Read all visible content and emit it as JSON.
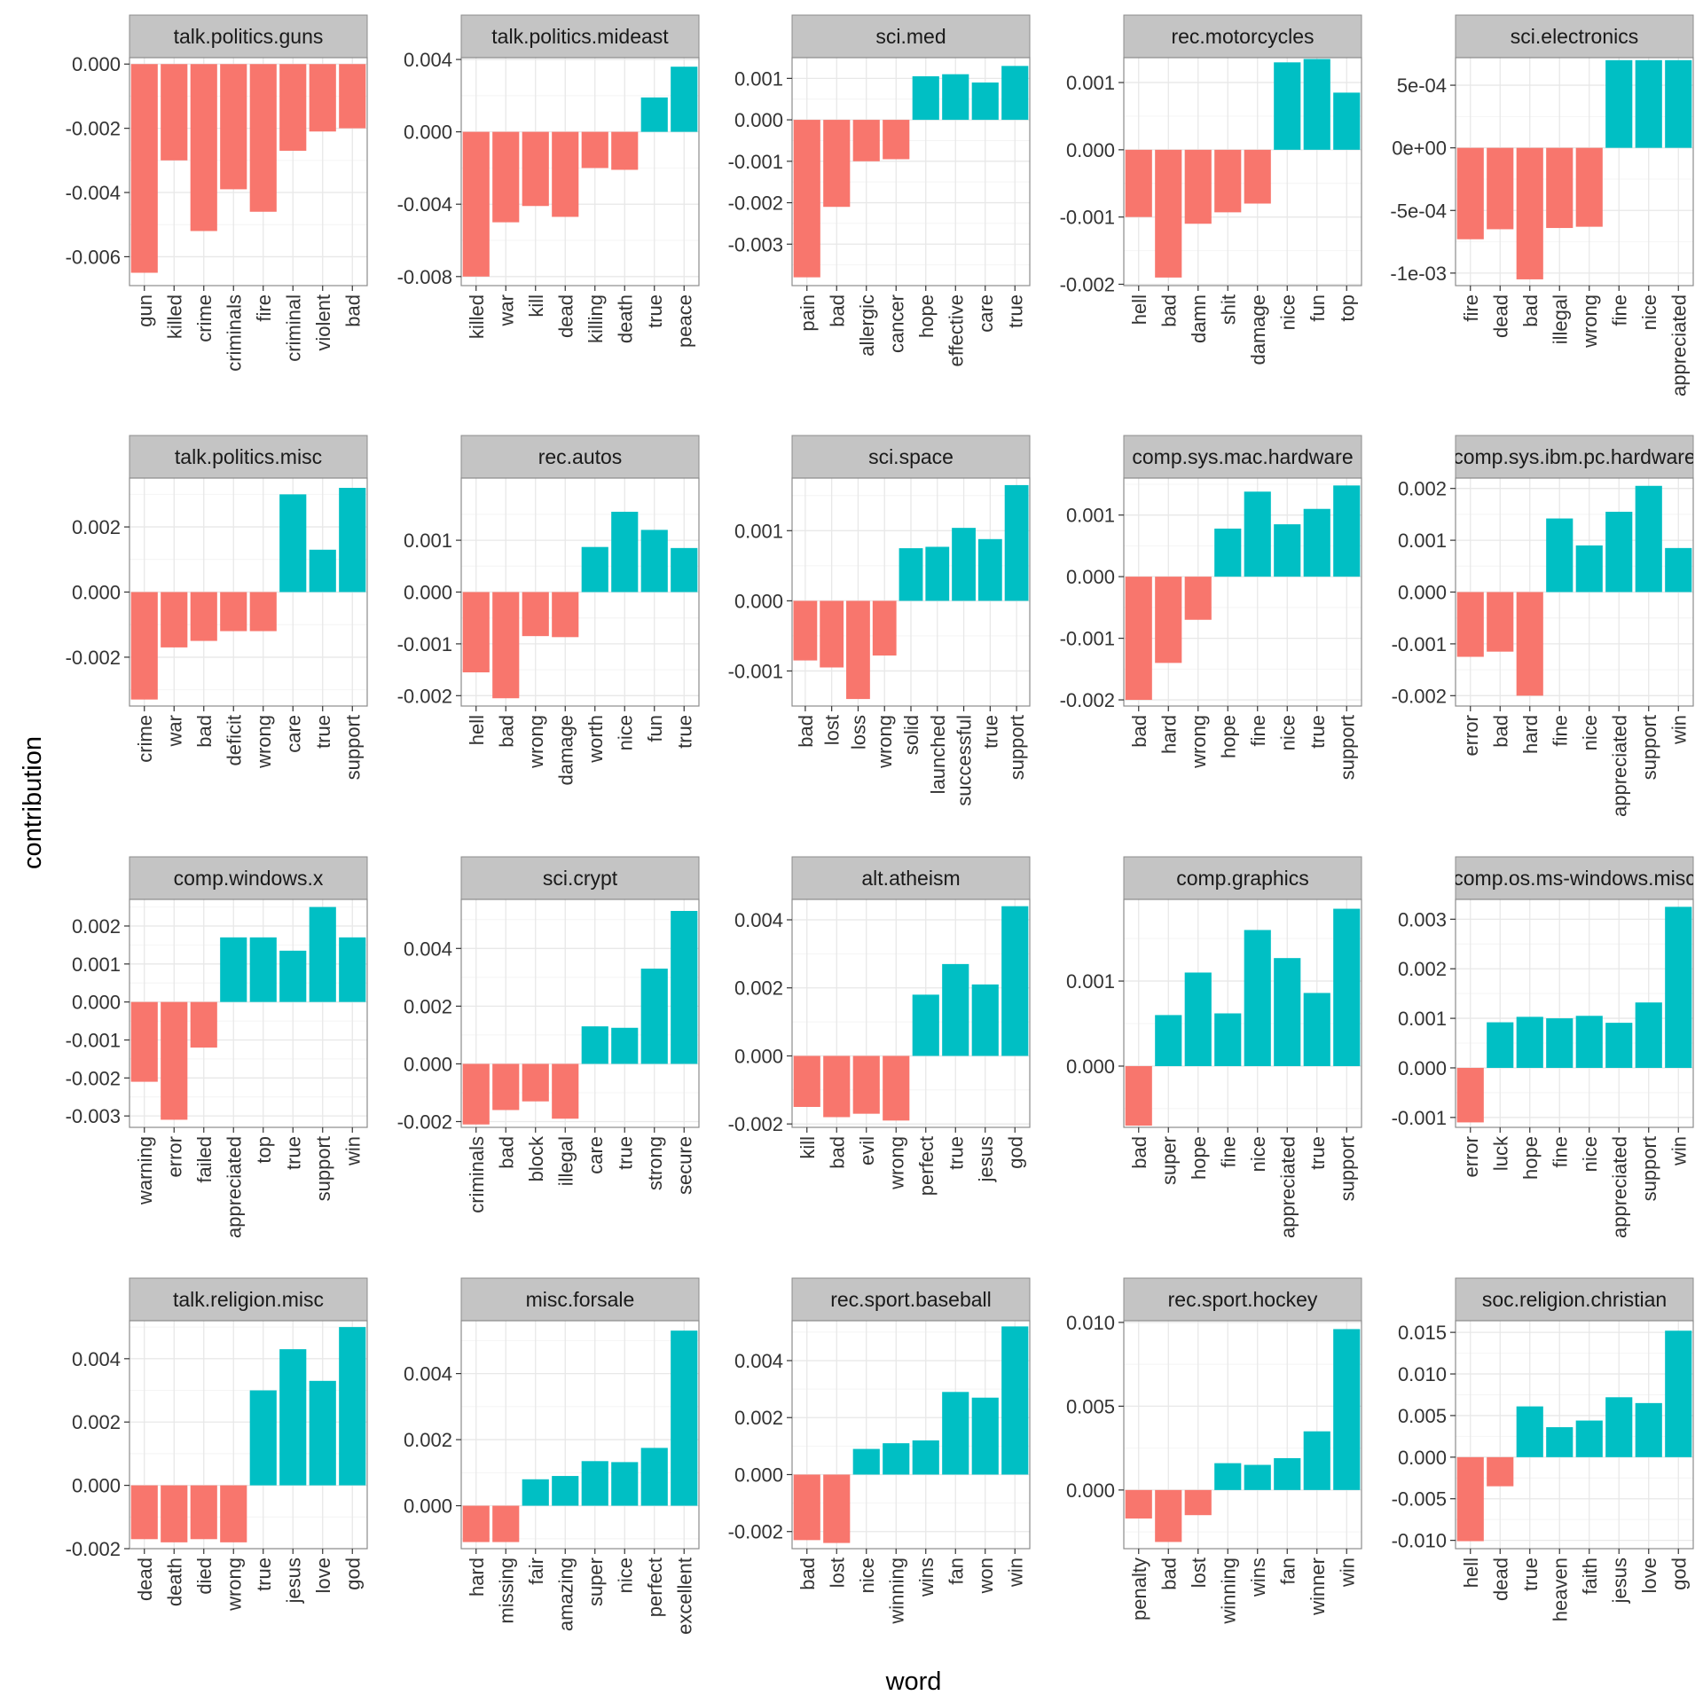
{
  "colors": {
    "negative": "#F8766D",
    "positive": "#00BFC4",
    "strip_fill": "#C4C4C4",
    "panel_border": "#8C8C8C",
    "grid_major": "#E8E8E8",
    "grid_minor": "#F4F4F4"
  },
  "chart_data": {
    "type": "bar",
    "facet": "wrap",
    "xlabel": "word",
    "ylabel": "contribution",
    "grid": true,
    "legend": "none",
    "panels": [
      {
        "name": "talk.politics.guns",
        "words": [
          "gun",
          "killed",
          "crime",
          "criminals",
          "fire",
          "criminal",
          "violent",
          "bad"
        ],
        "values": [
          -0.0065,
          -0.003,
          -0.0052,
          -0.0039,
          -0.0046,
          -0.0027,
          -0.0021,
          -0.002
        ],
        "ylim": [
          -0.0069,
          0.0002
        ],
        "yticks": [
          0,
          -0.002,
          -0.004,
          -0.006
        ],
        "yticklabels": [
          "0.000",
          "-0.002",
          "-0.004",
          "-0.006"
        ]
      },
      {
        "name": "talk.politics.mideast",
        "words": [
          "killed",
          "war",
          "kill",
          "dead",
          "killing",
          "death",
          "true",
          "peace"
        ],
        "values": [
          -0.008,
          -0.005,
          -0.0041,
          -0.0047,
          -0.002,
          -0.0021,
          0.0019,
          0.0036
        ],
        "ylim": [
          -0.0085,
          0.0041
        ],
        "yticks": [
          0.004,
          0,
          -0.004,
          -0.008
        ],
        "yticklabels": [
          "0.004",
          "0.000",
          "-0.004",
          "-0.008"
        ]
      },
      {
        "name": "sci.med",
        "words": [
          "pain",
          "bad",
          "allergic",
          "cancer",
          "hope",
          "effective",
          "care",
          "true"
        ],
        "values": [
          -0.0038,
          -0.0021,
          -0.001,
          -0.00095,
          0.00105,
          0.0011,
          0.0009,
          0.0013
        ],
        "ylim": [
          -0.004,
          0.0015
        ],
        "yticks": [
          0.001,
          0,
          -0.001,
          -0.002,
          -0.003
        ],
        "yticklabels": [
          "0.001",
          "0.000",
          "-0.001",
          "-0.002",
          "-0.003"
        ]
      },
      {
        "name": "rec.motorcycles",
        "words": [
          "hell",
          "bad",
          "damn",
          "shit",
          "damage",
          "nice",
          "fun",
          "top"
        ],
        "values": [
          -0.001,
          -0.0019,
          -0.0011,
          -0.00093,
          -0.0008,
          0.0013,
          0.00135,
          0.00085
        ],
        "ylim": [
          -0.00202,
          0.00137
        ],
        "yticks": [
          0.001,
          0,
          -0.001,
          -0.002
        ],
        "yticklabels": [
          "0.001",
          "0.000",
          "-0.001",
          "-0.002"
        ]
      },
      {
        "name": "sci.electronics",
        "words": [
          "fire",
          "dead",
          "bad",
          "illegal",
          "wrong",
          "fine",
          "nice",
          "appreciated"
        ],
        "values": [
          -0.00073,
          -0.00065,
          -0.00105,
          -0.00064,
          -0.00063,
          0.0007,
          0.0007,
          0.0007
        ],
        "ylim": [
          -0.0011,
          0.00072
        ],
        "yticks": [
          0.0005,
          0,
          -0.0005,
          -0.001
        ],
        "yticklabels": [
          "5e-04",
          "0e+00",
          "-5e-04",
          "-1e-03"
        ]
      },
      {
        "name": "talk.politics.misc",
        "words": [
          "crime",
          "war",
          "bad",
          "deficit",
          "wrong",
          "care",
          "true",
          "support"
        ],
        "values": [
          -0.0033,
          -0.0017,
          -0.0015,
          -0.0012,
          -0.0012,
          0.003,
          0.0013,
          0.0032
        ],
        "ylim": [
          -0.0035,
          0.0035
        ],
        "yticks": [
          0.002,
          0,
          -0.002
        ],
        "yticklabels": [
          "0.002",
          "0.000",
          "-0.002"
        ]
      },
      {
        "name": "rec.autos",
        "words": [
          "hell",
          "bad",
          "wrong",
          "damage",
          "worth",
          "nice",
          "fun",
          "true"
        ],
        "values": [
          -0.00155,
          -0.00205,
          -0.00085,
          -0.00087,
          0.00087,
          0.00155,
          0.0012,
          0.00085
        ],
        "ylim": [
          -0.0022,
          0.0022
        ],
        "yticks": [
          0.001,
          0,
          -0.001,
          -0.002
        ],
        "yticklabels": [
          "0.001",
          "0.000",
          "-0.001",
          "-0.002"
        ]
      },
      {
        "name": "sci.space",
        "words": [
          "bad",
          "lost",
          "loss",
          "wrong",
          "solid",
          "launched",
          "successful",
          "true",
          "support"
        ],
        "values": [
          -0.00085,
          -0.00095,
          -0.0014,
          -0.00078,
          0.00075,
          0.00077,
          0.00104,
          0.00088,
          0.00165
        ],
        "ylim": [
          -0.0015,
          0.00175
        ],
        "yticks": [
          0.001,
          0,
          -0.001
        ],
        "yticklabels": [
          "0.001",
          "0.000",
          "-0.001"
        ]
      },
      {
        "name": "comp.sys.mac.hardware",
        "words": [
          "bad",
          "hard",
          "wrong",
          "hope",
          "fine",
          "nice",
          "true",
          "support"
        ],
        "values": [
          -0.002,
          -0.0014,
          -0.0007,
          0.00078,
          0.00138,
          0.00085,
          0.0011,
          0.00148
        ],
        "ylim": [
          -0.0021,
          0.0016
        ],
        "yticks": [
          0.001,
          0,
          -0.001,
          -0.002
        ],
        "yticklabels": [
          "0.001",
          "0.000",
          "-0.001",
          "-0.002"
        ]
      },
      {
        "name": "comp.sys.ibm.pc.hardware",
        "words": [
          "error",
          "bad",
          "hard",
          "fine",
          "nice",
          "appreciated",
          "support",
          "win"
        ],
        "values": [
          -0.00125,
          -0.00115,
          -0.002,
          0.00142,
          0.0009,
          0.00155,
          0.00205,
          0.00085
        ],
        "ylim": [
          -0.0022,
          0.0022
        ],
        "yticks": [
          0.002,
          0.001,
          0,
          -0.001,
          -0.002
        ],
        "yticklabels": [
          "0.002",
          "0.001",
          "0.000",
          "-0.001",
          "-0.002"
        ]
      },
      {
        "name": "comp.windows.x",
        "words": [
          "warning",
          "error",
          "failed",
          "appreciated",
          "top",
          "true",
          "support",
          "win"
        ],
        "values": [
          -0.0021,
          -0.0031,
          -0.0012,
          0.0017,
          0.0017,
          0.00135,
          0.0025,
          0.0017
        ],
        "ylim": [
          -0.0033,
          0.0027
        ],
        "yticks": [
          0.002,
          0.001,
          0,
          -0.001,
          -0.002,
          -0.003
        ],
        "yticklabels": [
          "0.002",
          "0.001",
          "0.000",
          "-0.001",
          "-0.002",
          "-0.003"
        ]
      },
      {
        "name": "sci.crypt",
        "words": [
          "criminals",
          "bad",
          "block",
          "illegal",
          "care",
          "true",
          "strong",
          "secure"
        ],
        "values": [
          -0.0021,
          -0.0016,
          -0.0013,
          -0.0019,
          0.0013,
          0.00125,
          0.0033,
          0.0053
        ],
        "ylim": [
          -0.0022,
          0.0057
        ],
        "yticks": [
          0.004,
          0.002,
          0,
          -0.002
        ],
        "yticklabels": [
          "0.004",
          "0.002",
          "0.000",
          "-0.002"
        ]
      },
      {
        "name": "alt.atheism",
        "words": [
          "kill",
          "bad",
          "evil",
          "wrong",
          "perfect",
          "true",
          "jesus",
          "god"
        ],
        "values": [
          -0.0015,
          -0.0018,
          -0.0017,
          -0.0019,
          0.0018,
          0.0027,
          0.0021,
          0.0044
        ],
        "ylim": [
          -0.0021,
          0.0046
        ],
        "yticks": [
          0.004,
          0.002,
          0,
          -0.002
        ],
        "yticklabels": [
          "0.004",
          "0.002",
          "0.000",
          "-0.002"
        ]
      },
      {
        "name": "comp.graphics",
        "words": [
          "bad",
          "super",
          "hope",
          "fine",
          "nice",
          "appreciated",
          "true",
          "support"
        ],
        "values": [
          -0.0007,
          0.0006,
          0.0011,
          0.00062,
          0.0016,
          0.00127,
          0.00086,
          0.00185
        ],
        "ylim": [
          -0.00072,
          0.00196
        ],
        "yticks": [
          0.001,
          0
        ],
        "yticklabels": [
          "0.001",
          "0.000"
        ]
      },
      {
        "name": "comp.os.ms-windows.misc",
        "words": [
          "error",
          "luck",
          "hope",
          "fine",
          "nice",
          "appreciated",
          "support",
          "win"
        ],
        "values": [
          -0.0011,
          0.00092,
          0.00103,
          0.001,
          0.00105,
          0.00091,
          0.00132,
          0.00325
        ],
        "ylim": [
          -0.0012,
          0.0034
        ],
        "yticks": [
          0.003,
          0.002,
          0.001,
          0,
          -0.001
        ],
        "yticklabels": [
          "0.003",
          "0.002",
          "0.001",
          "0.000",
          "-0.001"
        ]
      },
      {
        "name": "talk.religion.misc",
        "words": [
          "dead",
          "death",
          "died",
          "wrong",
          "true",
          "jesus",
          "love",
          "god"
        ],
        "values": [
          -0.0017,
          -0.0018,
          -0.0017,
          -0.0018,
          0.003,
          0.0043,
          0.0033,
          0.005
        ],
        "ylim": [
          -0.002,
          0.0052
        ],
        "yticks": [
          0.004,
          0.002,
          0,
          -0.002
        ],
        "yticklabels": [
          "0.004",
          "0.002",
          "0.000",
          "-0.002"
        ]
      },
      {
        "name": "misc.forsale",
        "words": [
          "hard",
          "missing",
          "fair",
          "amazing",
          "super",
          "nice",
          "perfect",
          "excellent"
        ],
        "values": [
          -0.0011,
          -0.0011,
          0.0008,
          0.0009,
          0.00135,
          0.00132,
          0.00175,
          0.0053
        ],
        "ylim": [
          -0.0013,
          0.0056
        ],
        "yticks": [
          0.004,
          0.002,
          0
        ],
        "yticklabels": [
          "0.004",
          "0.002",
          "0.000"
        ]
      },
      {
        "name": "rec.sport.baseball",
        "words": [
          "bad",
          "lost",
          "nice",
          "winning",
          "wins",
          "fan",
          "won",
          "win"
        ],
        "values": [
          -0.0023,
          -0.0024,
          0.0009,
          0.0011,
          0.0012,
          0.0029,
          0.0027,
          0.0052
        ],
        "ylim": [
          -0.0026,
          0.0054
        ],
        "yticks": [
          0.004,
          0.002,
          0,
          -0.002
        ],
        "yticklabels": [
          "0.004",
          "0.002",
          "0.000",
          "-0.002"
        ]
      },
      {
        "name": "rec.sport.hockey",
        "words": [
          "penalty",
          "bad",
          "lost",
          "winning",
          "wins",
          "fan",
          "winner",
          "win"
        ],
        "values": [
          -0.0017,
          -0.0031,
          -0.0015,
          0.0016,
          0.0015,
          0.0019,
          0.0035,
          0.0096
        ],
        "ylim": [
          -0.0035,
          0.0101
        ],
        "yticks": [
          0.01,
          0.005,
          0
        ],
        "yticklabels": [
          "0.010",
          "0.005",
          "0.000"
        ]
      },
      {
        "name": "soc.religion.christian",
        "words": [
          "hell",
          "dead",
          "true",
          "heaven",
          "faith",
          "jesus",
          "love",
          "god"
        ],
        "values": [
          -0.0101,
          -0.0035,
          0.0061,
          0.0036,
          0.0044,
          0.0072,
          0.0065,
          0.0152
        ],
        "ylim": [
          -0.011,
          0.0164
        ],
        "yticks": [
          0.015,
          0.01,
          0.005,
          0,
          -0.005,
          -0.01
        ],
        "yticklabels": [
          "0.015",
          "0.010",
          "0.005",
          "0.000",
          "-0.005",
          "-0.010"
        ]
      }
    ]
  }
}
